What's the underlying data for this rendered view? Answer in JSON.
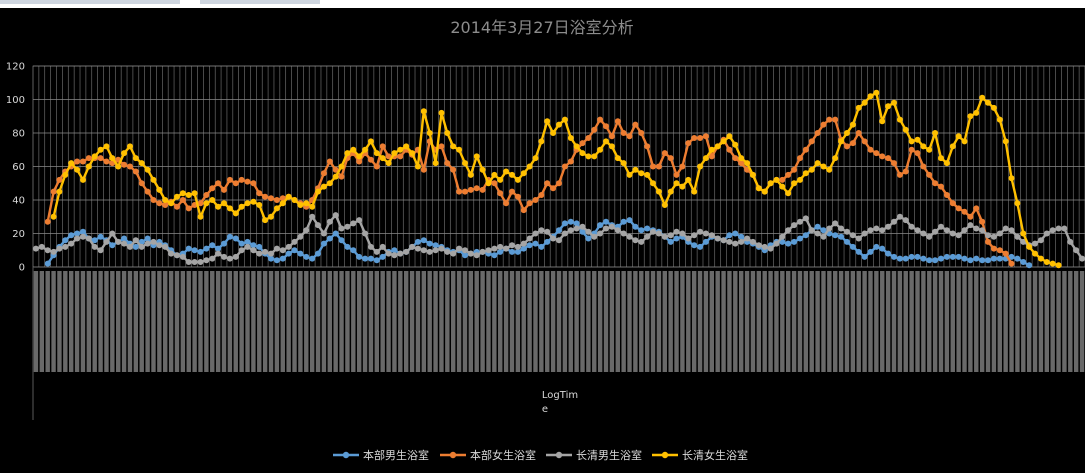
{
  "chart_data": {
    "type": "line",
    "title": "2014年3月27日浴室分析",
    "xlabel": "LogTime",
    "ylabel": "",
    "ylim": [
      0,
      120
    ],
    "yticks": [
      0,
      20,
      40,
      60,
      80,
      100,
      120
    ],
    "grid": true,
    "legend_position": "bottom",
    "x": [
      1,
      2,
      3,
      4,
      5,
      6,
      7,
      8,
      9,
      10,
      11,
      12,
      13,
      14,
      15,
      16,
      17,
      18,
      19,
      20,
      21,
      22,
      23,
      24,
      25,
      26,
      27,
      28,
      29,
      30,
      31,
      32,
      33,
      34,
      35,
      36,
      37,
      38,
      39,
      40,
      41,
      42,
      43,
      44,
      45,
      46,
      47,
      48,
      49,
      50,
      51,
      52,
      53,
      54,
      55,
      56,
      57,
      58,
      59,
      60,
      61,
      62,
      63,
      64,
      65,
      66,
      67,
      68,
      69,
      70,
      71,
      72,
      73,
      74,
      75,
      76,
      77,
      78,
      79,
      80,
      81,
      82,
      83,
      84,
      85,
      86,
      87,
      88,
      89,
      90,
      91,
      92,
      93,
      94,
      95,
      96,
      97,
      98,
      99,
      100,
      101,
      102,
      103,
      104,
      105,
      106,
      107,
      108,
      109,
      110,
      111,
      112,
      113,
      114,
      115,
      116,
      117,
      118,
      119,
      120,
      121,
      122,
      123,
      124,
      125,
      126,
      127,
      128,
      129,
      130,
      131,
      132,
      133,
      134,
      135,
      136,
      137,
      138,
      139,
      140,
      141,
      142,
      143,
      144,
      145,
      146,
      147,
      148,
      149,
      150,
      151,
      152,
      153,
      154,
      155,
      156,
      157,
      158,
      159,
      160,
      161,
      162,
      163,
      164,
      165,
      166,
      167,
      168,
      169,
      170,
      171,
      172,
      173,
      174,
      175,
      176,
      177,
      178,
      179
    ],
    "series": [
      {
        "name": "本部男生浴室",
        "color": "#5b9bd5",
        "values": [
          null,
          null,
          2,
          7,
          12,
          16,
          19,
          20,
          21,
          17,
          16,
          18,
          16,
          13,
          15,
          17,
          14,
          12,
          15,
          17,
          13,
          15,
          13,
          10,
          7,
          8,
          11,
          10,
          9,
          11,
          13,
          11,
          14,
          18,
          17,
          14,
          15,
          13,
          12,
          8,
          5,
          4,
          5,
          8,
          10,
          8,
          6,
          5,
          8,
          14,
          17,
          20,
          16,
          12,
          10,
          6,
          5,
          5,
          4,
          6,
          9,
          10,
          8,
          9,
          12,
          15,
          16,
          14,
          13,
          12,
          10,
          9,
          10,
          7,
          8,
          9,
          9,
          8,
          7,
          9,
          11,
          9,
          9,
          11,
          13,
          14,
          12,
          15,
          18,
          22,
          26,
          27,
          26,
          21,
          17,
          20,
          25,
          27,
          25,
          24,
          27,
          28,
          24,
          22,
          23,
          22,
          21,
          18,
          15,
          17,
          18,
          15,
          13,
          12,
          15,
          18,
          17,
          16,
          19,
          20,
          18,
          15,
          14,
          12,
          10,
          13,
          15,
          15,
          14,
          15,
          17,
          19,
          22,
          24,
          22,
          20,
          19,
          18,
          15,
          12,
          9,
          6,
          9,
          12,
          11,
          8,
          6,
          5,
          5,
          6,
          6,
          5,
          4,
          4,
          5,
          6,
          6,
          6,
          5,
          4,
          5,
          4,
          4,
          5,
          5,
          5,
          6,
          5,
          3,
          1,
          null,
          null,
          null,
          null,
          null,
          null,
          null,
          null,
          null
        ]
      },
      {
        "name": "本部女生浴室",
        "color": "#ed7d31",
        "values": [
          null,
          null,
          27,
          45,
          52,
          57,
          60,
          63,
          63,
          65,
          65,
          65,
          63,
          62,
          64,
          61,
          60,
          57,
          50,
          45,
          40,
          38,
          37,
          39,
          36,
          40,
          35,
          37,
          38,
          43,
          47,
          50,
          46,
          52,
          50,
          52,
          51,
          50,
          44,
          42,
          41,
          40,
          41,
          42,
          40,
          38,
          36,
          40,
          47,
          56,
          63,
          58,
          54,
          65,
          68,
          63,
          68,
          64,
          60,
          72,
          66,
          66,
          66,
          70,
          67,
          70,
          58,
          75,
          70,
          72,
          62,
          58,
          45,
          45,
          46,
          47,
          46,
          52,
          50,
          44,
          38,
          45,
          42,
          34,
          38,
          40,
          43,
          50,
          47,
          50,
          60,
          63,
          70,
          74,
          77,
          82,
          88,
          84,
          78,
          87,
          80,
          78,
          85,
          80,
          72,
          60,
          60,
          68,
          65,
          55,
          60,
          74,
          77,
          77,
          78,
          66,
          72,
          76,
          70,
          65,
          62,
          58,
          55,
          47,
          45,
          50,
          52,
          52,
          55,
          58,
          65,
          70,
          75,
          80,
          85,
          88,
          88,
          76,
          72,
          74,
          80,
          75,
          70,
          68,
          66,
          65,
          62,
          55,
          57,
          70,
          68,
          60,
          55,
          50,
          48,
          43,
          38,
          35,
          33,
          30,
          35,
          27,
          15,
          11,
          10,
          8,
          2,
          null,
          null,
          null,
          null,
          null,
          null,
          null,
          null,
          null,
          null,
          null,
          null
        ]
      },
      {
        "name": "长清男生浴室",
        "color": "#a5a5a5",
        "values": [
          11,
          12,
          10,
          9,
          11,
          12,
          14,
          17,
          18,
          17,
          12,
          10,
          15,
          20,
          15,
          14,
          12,
          16,
          12,
          14,
          15,
          13,
          12,
          8,
          7,
          6,
          3,
          3,
          3,
          4,
          5,
          8,
          6,
          5,
          6,
          10,
          12,
          10,
          8,
          9,
          8,
          11,
          10,
          12,
          15,
          18,
          22,
          30,
          25,
          20,
          27,
          31,
          23,
          24,
          26,
          28,
          20,
          12,
          9,
          12,
          8,
          7,
          8,
          9,
          12,
          11,
          10,
          9,
          10,
          11,
          9,
          8,
          11,
          10,
          8,
          7,
          9,
          10,
          11,
          12,
          11,
          13,
          12,
          14,
          17,
          20,
          22,
          21,
          17,
          16,
          20,
          22,
          23,
          24,
          21,
          18,
          20,
          23,
          24,
          22,
          20,
          18,
          16,
          15,
          18,
          21,
          20,
          18,
          19,
          21,
          20,
          17,
          19,
          21,
          20,
          19,
          17,
          16,
          15,
          14,
          15,
          17,
          15,
          13,
          12,
          11,
          14,
          18,
          22,
          25,
          27,
          29,
          22,
          20,
          18,
          23,
          26,
          23,
          21,
          19,
          17,
          20,
          22,
          23,
          22,
          24,
          27,
          30,
          28,
          24,
          22,
          20,
          18,
          21,
          24,
          22,
          20,
          19,
          22,
          25,
          23,
          22,
          19,
          18,
          20,
          23,
          22,
          18,
          15,
          13,
          14,
          16,
          20,
          22,
          23,
          23,
          15,
          10,
          5
        ]
      },
      {
        "name": "长清女生浴室",
        "color": "#ffc000",
        "values": [
          null,
          null,
          null,
          30,
          45,
          55,
          62,
          58,
          52,
          60,
          66,
          70,
          72,
          65,
          60,
          68,
          72,
          65,
          62,
          58,
          52,
          46,
          40,
          38,
          42,
          44,
          43,
          44,
          30,
          38,
          40,
          36,
          38,
          35,
          32,
          36,
          38,
          39,
          37,
          28,
          30,
          35,
          38,
          42,
          40,
          37,
          38,
          36,
          45,
          48,
          50,
          54,
          60,
          68,
          70,
          66,
          70,
          75,
          68,
          65,
          62,
          68,
          70,
          72,
          68,
          60,
          93,
          80,
          62,
          92,
          80,
          72,
          70,
          62,
          55,
          66,
          58,
          50,
          55,
          52,
          57,
          55,
          52,
          56,
          60,
          65,
          75,
          87,
          80,
          85,
          88,
          77,
          72,
          68,
          66,
          66,
          70,
          75,
          72,
          65,
          62,
          55,
          58,
          56,
          55,
          50,
          45,
          37,
          45,
          50,
          48,
          52,
          45,
          60,
          65,
          70,
          72,
          75,
          78,
          73,
          65,
          62,
          55,
          47,
          45,
          50,
          52,
          48,
          44,
          50,
          52,
          56,
          58,
          62,
          60,
          58,
          65,
          75,
          80,
          85,
          95,
          98,
          102,
          104,
          87,
          96,
          98,
          88,
          82,
          75,
          76,
          72,
          70,
          80,
          65,
          62,
          72,
          78,
          75,
          90,
          92,
          101,
          98,
          95,
          88,
          75,
          53,
          38,
          20,
          12,
          8,
          5,
          3,
          2,
          1,
          null,
          null,
          null,
          null
        ]
      }
    ]
  }
}
